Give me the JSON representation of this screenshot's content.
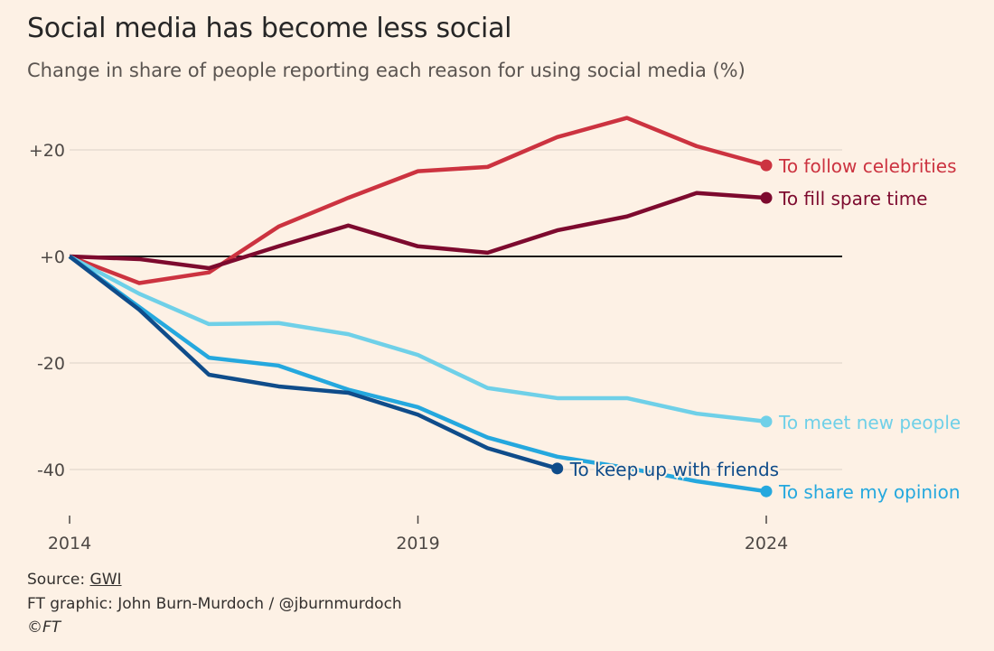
{
  "chart_data": {
    "type": "line",
    "title": "Social media has become less social",
    "subtitle": "Change in share of people reporting each reason for using social media (%)",
    "xlabel": "",
    "ylabel": "",
    "x": [
      2014,
      2015,
      2016,
      2017,
      2018,
      2019,
      2020,
      2021,
      2022,
      2023,
      2024
    ],
    "xlim": [
      2014,
      2024
    ],
    "ylim": [
      -48,
      28
    ],
    "xticks": [
      {
        "value": 2014,
        "label": "2014"
      },
      {
        "value": 2019,
        "label": "2019"
      },
      {
        "value": 2024,
        "label": "2024"
      }
    ],
    "yticks": [
      {
        "value": 20,
        "label": "+20"
      },
      {
        "value": 0,
        "label": "+0"
      },
      {
        "value": -20,
        "label": "-20"
      },
      {
        "value": -40,
        "label": "-40"
      }
    ],
    "grid": true,
    "legend": "direct labels at line ends",
    "series": [
      {
        "name": "To follow celebrities",
        "color": "#cc3340",
        "values": [
          0,
          -5,
          -3,
          5.6,
          11,
          16,
          16.8,
          22.4,
          26,
          20.7,
          17.1
        ]
      },
      {
        "name": "To fill spare time",
        "color": "#7d0a2e",
        "values": [
          0,
          -0.5,
          -2.2,
          1.9,
          5.8,
          1.9,
          0.7,
          4.9,
          7.5,
          11.9,
          11
        ]
      },
      {
        "name": "To meet new people",
        "color": "#6fd0e8",
        "values": [
          0,
          -7,
          -12.7,
          -12.5,
          -14.6,
          -18.5,
          -24.7,
          -26.6,
          -26.6,
          -29.5,
          -31
        ]
      },
      {
        "name": "To share my opinion",
        "color": "#25a8de",
        "values": [
          0,
          -9.5,
          -19,
          -20.5,
          -25,
          -28.3,
          -34,
          -37.6,
          -39.7,
          -42.2,
          -44.1
        ]
      },
      {
        "name": "To keep up with friends",
        "color": "#0f4c8a",
        "values": [
          0,
          -10,
          -22.2,
          -24.4,
          -25.6,
          -29.7,
          -36,
          -39.8,
          null,
          null,
          null
        ]
      }
    ]
  },
  "footer": {
    "source_prefix": "Source: ",
    "source_link": "GWI",
    "credit": "FT graphic: John Burn-Murdoch / @jburnmurdoch",
    "copyright": "©FT"
  }
}
